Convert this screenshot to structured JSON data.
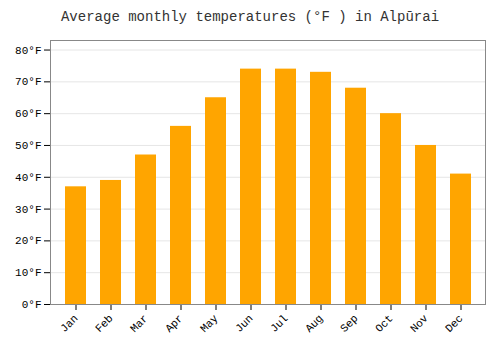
{
  "chart_data": {
    "type": "bar",
    "title": "Average monthly temperatures (°F ) in Alpūrai",
    "categories": [
      "Jan",
      "Feb",
      "Mar",
      "Apr",
      "May",
      "Jun",
      "Jul",
      "Aug",
      "Sep",
      "Oct",
      "Nov",
      "Dec"
    ],
    "values": [
      37,
      39,
      47,
      56,
      65,
      74,
      74,
      73,
      68,
      60,
      50,
      41
    ],
    "color": "#FFA500",
    "ylim": [
      0,
      83
    ],
    "yticks": [
      {
        "value": 0,
        "label": "0°F"
      },
      {
        "value": 10,
        "label": "10°F"
      },
      {
        "value": 20,
        "label": "20°F"
      },
      {
        "value": 30,
        "label": "30°F"
      },
      {
        "value": 40,
        "label": "40°F"
      },
      {
        "value": 50,
        "label": "50°F"
      },
      {
        "value": 60,
        "label": "60°F"
      },
      {
        "value": 70,
        "label": "70°F"
      },
      {
        "value": 80,
        "label": "80°F"
      }
    ],
    "grid": true
  }
}
